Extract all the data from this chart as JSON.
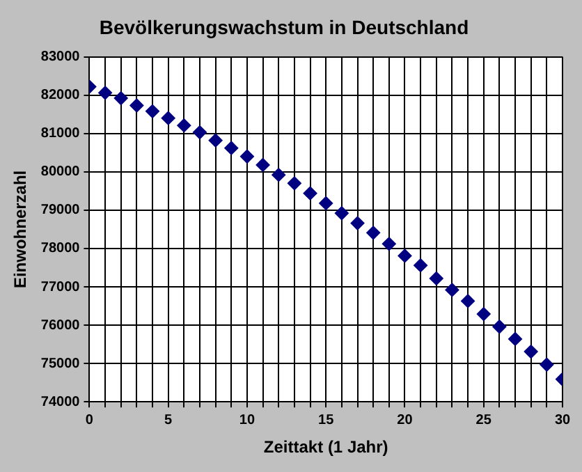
{
  "chart_data": {
    "type": "scatter",
    "title": "Bevölkerungswachstum in Deutschland",
    "xlabel": "Zeittakt (1 Jahr)",
    "ylabel": "Einwohnerzahl",
    "x": [
      0,
      1,
      2,
      3,
      4,
      5,
      6,
      7,
      8,
      9,
      10,
      11,
      12,
      13,
      14,
      15,
      16,
      17,
      18,
      19,
      20,
      21,
      22,
      23,
      24,
      25,
      26,
      27,
      28,
      29,
      30
    ],
    "series": [
      {
        "color": "#000080",
        "values": [
          82220,
          82060,
          81920,
          81730,
          81580,
          81400,
          81210,
          81030,
          80820,
          80620,
          80400,
          80180,
          79920,
          79700,
          79440,
          79180,
          78920,
          78660,
          78410,
          78120,
          77810,
          77560,
          77220,
          76920,
          76630,
          76290,
          75960,
          75640,
          75310,
          74970,
          74590
        ]
      }
    ],
    "xlim": [
      0,
      30
    ],
    "xticks": [
      0,
      {
        "value": 1,
        "label": null
      },
      {
        "value": 2,
        "label": null
      },
      {
        "value": 3,
        "label": null
      },
      {
        "value": 4,
        "label": null
      },
      5,
      {
        "value": 6,
        "label": null
      },
      {
        "value": 7,
        "label": null
      },
      {
        "value": 8,
        "label": null
      },
      {
        "value": 9,
        "label": null
      },
      10,
      {
        "value": 11,
        "label": null
      },
      {
        "value": 12,
        "label": null
      },
      {
        "value": 13,
        "label": null
      },
      {
        "value": 14,
        "label": null
      },
      15,
      {
        "value": 16,
        "label": null
      },
      {
        "value": 17,
        "label": null
      },
      {
        "value": 18,
        "label": null
      },
      {
        "value": 19,
        "label": null
      },
      20,
      {
        "value": 21,
        "label": null
      },
      {
        "value": 22,
        "label": null
      },
      {
        "value": 23,
        "label": null
      },
      {
        "value": 24,
        "label": null
      },
      25,
      {
        "value": 26,
        "label": null
      },
      {
        "value": 27,
        "label": null
      },
      {
        "value": 28,
        "label": null
      },
      {
        "value": 29,
        "label": null
      },
      30
    ],
    "ylim": [
      74000,
      83000
    ],
    "yticks": [
      74000,
      75000,
      76000,
      77000,
      78000,
      79000,
      80000,
      81000,
      82000,
      83000
    ],
    "grid": true,
    "legend": false,
    "marker": "diamond"
  }
}
